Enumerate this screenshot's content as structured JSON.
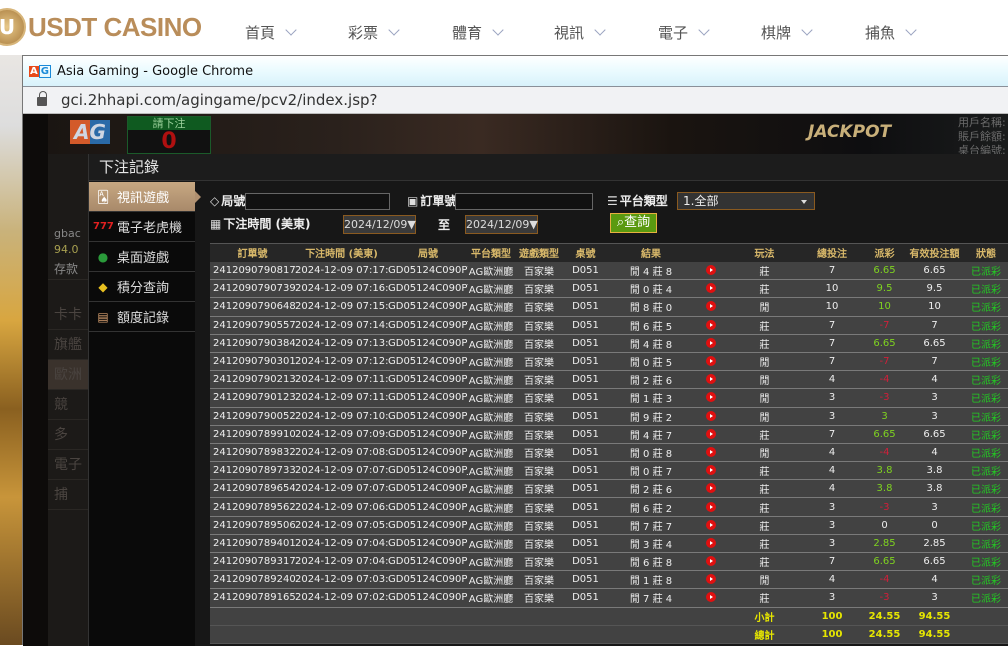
{
  "site": {
    "logo_text": "USDT CASINO",
    "nav": [
      "首頁",
      "彩票",
      "體育",
      "視訊",
      "電子",
      "棋牌",
      "捕魚"
    ]
  },
  "window": {
    "title": "Asia Gaming - Google Chrome",
    "url": "gci.2hhapi.com/agingame/pcv2/index.jsp?"
  },
  "game_bg": {
    "bet_label": "請下注",
    "bet_value": "0",
    "jackpot": "JACKPOT",
    "side": [
      "用戶名稱:",
      "賬戶餘額:",
      "桌台編號:"
    ],
    "left_items": [
      "gbac",
      "94.0",
      "存款",
      "卡卡",
      "旗艦",
      "歐洲",
      "競",
      "多",
      "電子",
      "捕"
    ]
  },
  "modal": {
    "title": "下注記錄",
    "nav": [
      {
        "label": "視訊遊戲",
        "icon": "cards-icon",
        "active": true
      },
      {
        "label": "電子老虎機",
        "icon": "slot-777-icon"
      },
      {
        "label": "桌面遊戲",
        "icon": "chips-icon"
      },
      {
        "label": "積分查詢",
        "icon": "diamond-icon"
      },
      {
        "label": "額度記錄",
        "icon": "document-icon"
      }
    ],
    "form": {
      "round_label": "局號",
      "round_value": "",
      "order_label": "訂單號",
      "order_value": "",
      "platform_label": "平台類型",
      "platform_value": "1.全部",
      "time_label": "下注時間 (美東)",
      "date_from": "2024/12/09▼",
      "to_label": "至",
      "date_to": "2024/12/09▼",
      "search_label": "查詢"
    },
    "colors": {
      "positive": "#7fd320",
      "negative": "#d0203a",
      "status": "#22cc22",
      "header": "#d8b86a",
      "summary": "#e6e600"
    },
    "table": {
      "headers": [
        "訂單號",
        "下注時間 (美東)",
        "局號",
        "平台類型",
        "遊戲類型",
        "桌號",
        "結果",
        "",
        "玩法",
        "總投注",
        "派彩",
        "有效投注額",
        "狀態"
      ],
      "rows": [
        [
          "241209079081771",
          "2024-12-09 07:17:12",
          "GD05124C090PW",
          "AG歐洲廳",
          "百家樂",
          "D051",
          "閒 4 莊 8",
          "莊",
          "7",
          "6.65",
          "6.65",
          "已派彩"
        ],
        [
          "241209079073967",
          "2024-12-09 07:16:31",
          "GD05124C090PV",
          "AG歐洲廳",
          "百家樂",
          "D051",
          "閒 0 莊 4",
          "莊",
          "10",
          "9.5",
          "9.5",
          "已派彩"
        ],
        [
          "241209079064875",
          "2024-12-09 07:15:43",
          "GD05124C090PU",
          "AG歐洲廳",
          "百家樂",
          "D051",
          "閒 8 莊 0",
          "閒",
          "10",
          "10",
          "10",
          "已派彩"
        ],
        [
          "241209079055714",
          "2024-12-09 07:14:52",
          "GD05124C090PT",
          "AG歐洲廳",
          "百家樂",
          "D051",
          "閒 6 莊 5",
          "莊",
          "7",
          "-7",
          "7",
          "已派彩"
        ],
        [
          "241209079038481",
          "2024-12-09 07:13:22",
          "GD05124C090PR",
          "AG歐洲廳",
          "百家樂",
          "D051",
          "閒 4 莊 8",
          "莊",
          "7",
          "6.65",
          "6.65",
          "已派彩"
        ],
        [
          "241209079030140",
          "2024-12-09 07:12:39",
          "GD05124C090PQ",
          "AG歐洲廳",
          "百家樂",
          "D051",
          "閒 0 莊 5",
          "閒",
          "7",
          "-7",
          "7",
          "已派彩"
        ],
        [
          "241209079021391",
          "2024-12-09 07:11:52",
          "GD05124C090PP",
          "AG歐洲廳",
          "百家樂",
          "D051",
          "閒 2 莊 6",
          "閒",
          "4",
          "-4",
          "4",
          "已派彩"
        ],
        [
          "241209079012309",
          "2024-12-09 07:11:06",
          "GD05124C090PO",
          "AG歐洲廳",
          "百家樂",
          "D051",
          "閒 1 莊 3",
          "閒",
          "3",
          "-3",
          "3",
          "已派彩"
        ],
        [
          "241209079005295",
          "2024-12-09 07:10:29",
          "GD05124C090PN",
          "AG歐洲廳",
          "百家樂",
          "D051",
          "閒 9 莊 2",
          "閒",
          "3",
          "3",
          "3",
          "已派彩"
        ],
        [
          "241209078991004",
          "2024-12-09 07:09:10",
          "GD05124C090PL",
          "AG歐洲廳",
          "百家樂",
          "D051",
          "閒 4 莊 7",
          "莊",
          "7",
          "6.65",
          "6.65",
          "已派彩"
        ],
        [
          "241209078983203",
          "2024-12-09 07:08:31",
          "GD05124C090PK",
          "AG歐洲廳",
          "百家樂",
          "D051",
          "閒 0 莊 8",
          "閒",
          "4",
          "-4",
          "4",
          "已派彩"
        ],
        [
          "241209078973301",
          "2024-12-09 07:07:43",
          "GD05124C090PJ",
          "AG歐洲廳",
          "百家樂",
          "D051",
          "閒 0 莊 7",
          "莊",
          "4",
          "3.8",
          "3.8",
          "已派彩"
        ],
        [
          "241209078965439",
          "2024-12-09 07:07:00",
          "GD05124C090PI",
          "AG歐洲廳",
          "百家樂",
          "D051",
          "閒 2 莊 6",
          "莊",
          "4",
          "3.8",
          "3.8",
          "已派彩"
        ],
        [
          "241209078956287",
          "2024-12-09 07:06:13",
          "GD05124C090PH",
          "AG歐洲廳",
          "百家樂",
          "D051",
          "閒 6 莊 2",
          "莊",
          "3",
          "-3",
          "3",
          "已派彩"
        ],
        [
          "241209078950602",
          "2024-12-09 07:05:44",
          "GD05124C090PG",
          "AG歐洲廳",
          "百家樂",
          "D051",
          "閒 7 莊 7",
          "莊",
          "3",
          "0",
          "0",
          "已派彩"
        ],
        [
          "241209078940147",
          "2024-12-09 07:04:50",
          "GD05124C090PF",
          "AG歐洲廳",
          "百家樂",
          "D051",
          "閒 3 莊 4",
          "莊",
          "3",
          "2.85",
          "2.85",
          "已派彩"
        ],
        [
          "241209078931716",
          "2024-12-09 07:04:05",
          "GD05124C090PE",
          "AG歐洲廳",
          "百家樂",
          "D051",
          "閒 6 莊 8",
          "莊",
          "7",
          "6.65",
          "6.65",
          "已派彩"
        ],
        [
          "241209078924017",
          "2024-12-09 07:03:22",
          "GD05124C090PD",
          "AG歐洲廳",
          "百家樂",
          "D051",
          "閒 1 莊 8",
          "閒",
          "4",
          "-4",
          "4",
          "已派彩"
        ],
        [
          "241209078916566",
          "2024-12-09 07:02:43",
          "GD05124C090PC",
          "AG歐洲廳",
          "百家樂",
          "D051",
          "閒 7 莊 4",
          "莊",
          "3",
          "-3",
          "3",
          "已派彩"
        ]
      ],
      "subtotal": {
        "label": "小計",
        "total_bet": "100",
        "payout": "24.55",
        "valid": "94.55"
      },
      "total": {
        "label": "總計",
        "total_bet": "100",
        "payout": "24.55",
        "valid": "94.55"
      }
    }
  }
}
